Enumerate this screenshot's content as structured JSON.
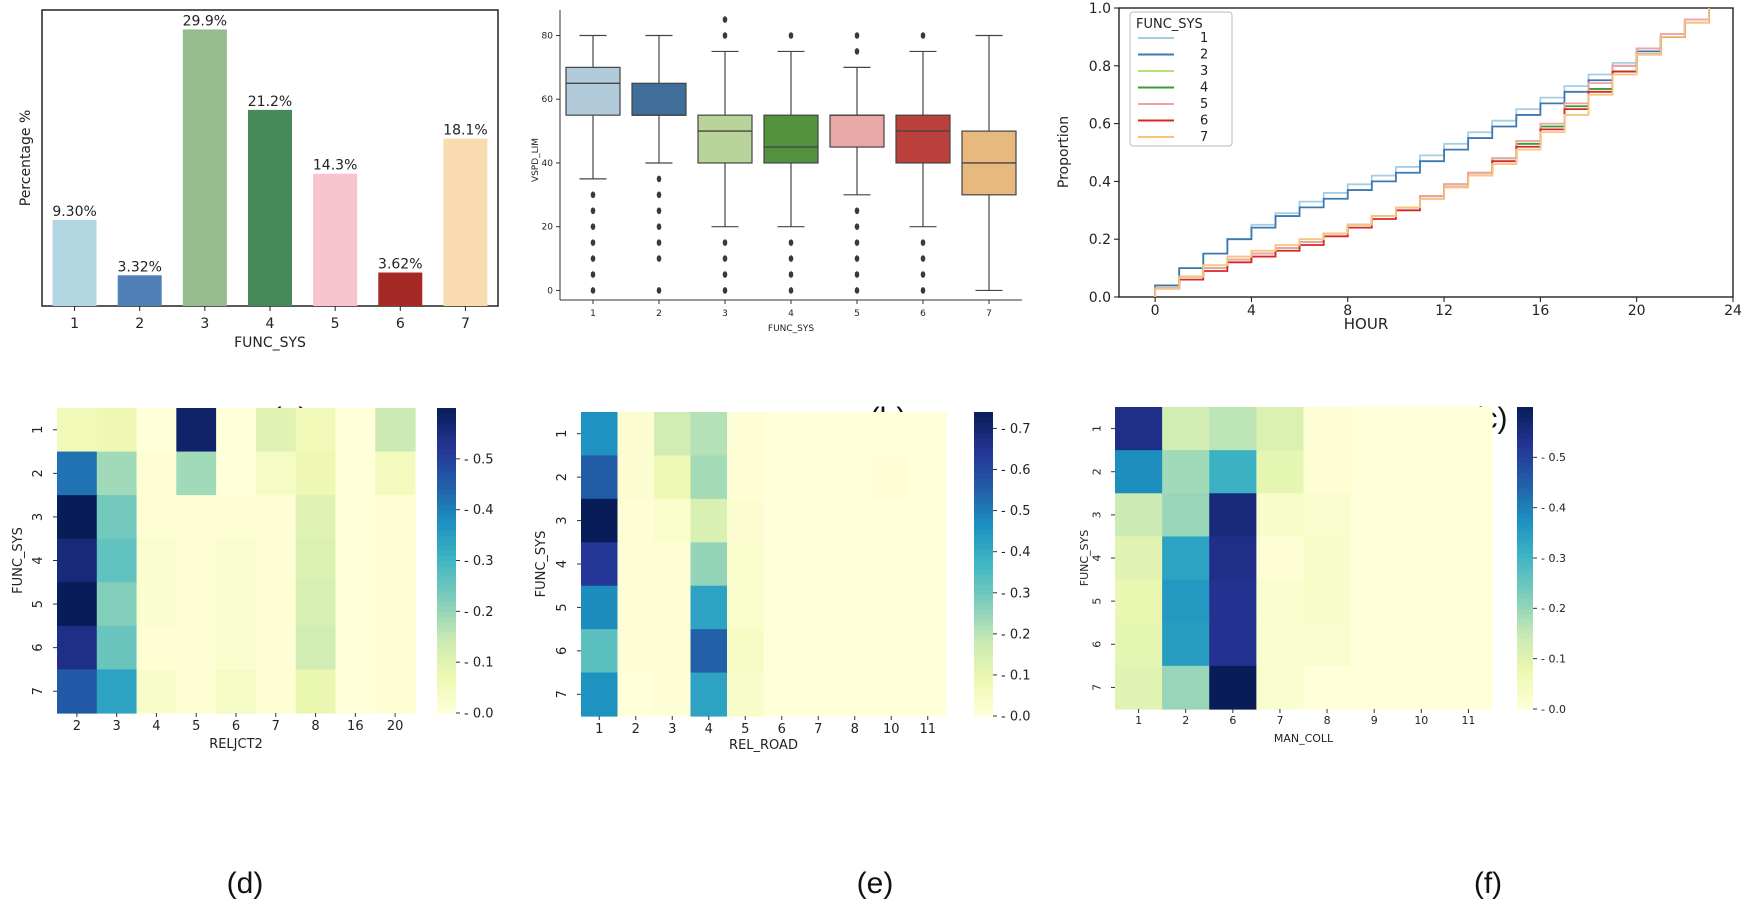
{
  "figure": {
    "captions": [
      "(a)",
      "(b)",
      "(c)",
      "(d)",
      "(e)",
      "(f)"
    ]
  },
  "chart_data": [
    {
      "id": "a",
      "type": "bar",
      "title": "",
      "xlabel": "FUNC_SYS",
      "ylabel": "Percentage %",
      "categories": [
        "1",
        "2",
        "3",
        "4",
        "5",
        "6",
        "7"
      ],
      "values": [
        9.3,
        3.32,
        29.9,
        21.2,
        14.3,
        3.62,
        18.1
      ],
      "labels": [
        "9.30%",
        "3.32%",
        "29.9%",
        "21.2%",
        "14.3%",
        "3.62%",
        "18.1%"
      ],
      "colors": [
        "#b3d6e3",
        "#4f81b7",
        "#96bb8f",
        "#458a57",
        "#f6c3cf",
        "#a52a25",
        "#f8dcb0"
      ],
      "ylim": [
        0,
        32
      ],
      "grid": false
    },
    {
      "id": "b",
      "type": "box",
      "xlabel": "FUNC_SYS",
      "ylabel": "VSPD_LIM",
      "categories": [
        "1",
        "2",
        "3",
        "4",
        "5",
        "6",
        "7"
      ],
      "ylim": [
        -3,
        88
      ],
      "yticks": [
        0,
        20,
        40,
        60,
        80
      ],
      "colors": [
        "#b2cbdb",
        "#3e6e99",
        "#b9d49b",
        "#55923f",
        "#e7a8a6",
        "#bb3f3a",
        "#e8b97e"
      ],
      "boxes": [
        {
          "whislo": 35,
          "q1": 55,
          "med": 65,
          "q3": 70,
          "whishi": 80,
          "fliers": [
            0,
            5,
            10,
            15,
            20,
            25,
            30
          ]
        },
        {
          "whislo": 40,
          "q1": 55,
          "med": 55,
          "q3": 65,
          "whishi": 80,
          "fliers": [
            0,
            10,
            15,
            20,
            25,
            30,
            35
          ]
        },
        {
          "whislo": 20,
          "q1": 40,
          "med": 50,
          "q3": 55,
          "whishi": 75,
          "fliers": [
            0,
            5,
            10,
            15,
            80,
            85
          ]
        },
        {
          "whislo": 20,
          "q1": 40,
          "med": 45,
          "q3": 55,
          "whishi": 75,
          "fliers": [
            0,
            5,
            10,
            15,
            80
          ]
        },
        {
          "whislo": 30,
          "q1": 45,
          "med": 55,
          "q3": 55,
          "whishi": 70,
          "fliers": [
            0,
            5,
            10,
            15,
            20,
            25,
            75,
            80
          ]
        },
        {
          "whislo": 20,
          "q1": 40,
          "med": 50,
          "q3": 55,
          "whishi": 75,
          "fliers": [
            0,
            5,
            10,
            15,
            80
          ]
        },
        {
          "whislo": 0,
          "q1": 30,
          "med": 40,
          "q3": 50,
          "whishi": 80,
          "fliers": []
        }
      ]
    },
    {
      "id": "c",
      "type": "line",
      "subtype": "step-ecdf",
      "xlabel": "HOUR",
      "ylabel": "Proportion",
      "xlim": [
        -1.5,
        24
      ],
      "ylim": [
        0,
        1
      ],
      "xticks": [
        0,
        4,
        8,
        12,
        16,
        20,
        24
      ],
      "yticks": [
        "0.0",
        "0.2",
        "0.4",
        "0.6",
        "0.8",
        "1.0"
      ],
      "legend": {
        "title": "FUNC_SYS",
        "position": "top-left"
      },
      "x": [
        0,
        1,
        2,
        3,
        4,
        5,
        6,
        7,
        8,
        9,
        10,
        11,
        12,
        13,
        14,
        15,
        16,
        17,
        18,
        19,
        20,
        21,
        22,
        23
      ],
      "series": [
        {
          "name": "1",
          "color": "#a6cee3",
          "values": [
            0.04,
            0.1,
            0.15,
            0.2,
            0.25,
            0.29,
            0.33,
            0.36,
            0.39,
            0.42,
            0.45,
            0.49,
            0.53,
            0.57,
            0.61,
            0.65,
            0.69,
            0.73,
            0.77,
            0.81,
            0.86,
            0.91,
            0.96,
            1.0
          ]
        },
        {
          "name": "2",
          "color": "#3c78b4",
          "values": [
            0.04,
            0.1,
            0.15,
            0.2,
            0.24,
            0.28,
            0.31,
            0.34,
            0.37,
            0.4,
            0.43,
            0.47,
            0.51,
            0.55,
            0.59,
            0.63,
            0.67,
            0.71,
            0.75,
            0.8,
            0.85,
            0.9,
            0.95,
            1.0
          ]
        },
        {
          "name": "3",
          "color": "#b8de7a",
          "values": [
            0.03,
            0.07,
            0.1,
            0.13,
            0.15,
            0.17,
            0.19,
            0.22,
            0.25,
            0.28,
            0.31,
            0.35,
            0.39,
            0.43,
            0.48,
            0.53,
            0.59,
            0.66,
            0.72,
            0.78,
            0.84,
            0.9,
            0.95,
            1.0
          ]
        },
        {
          "name": "4",
          "color": "#3a9c3a",
          "values": [
            0.03,
            0.07,
            0.1,
            0.13,
            0.15,
            0.17,
            0.19,
            0.22,
            0.25,
            0.28,
            0.31,
            0.35,
            0.39,
            0.43,
            0.48,
            0.53,
            0.59,
            0.66,
            0.72,
            0.78,
            0.84,
            0.9,
            0.95,
            1.0
          ]
        },
        {
          "name": "5",
          "color": "#f4a1a1",
          "values": [
            0.03,
            0.07,
            0.1,
            0.13,
            0.15,
            0.17,
            0.19,
            0.22,
            0.25,
            0.28,
            0.31,
            0.35,
            0.39,
            0.43,
            0.48,
            0.54,
            0.6,
            0.67,
            0.74,
            0.8,
            0.86,
            0.91,
            0.96,
            1.0
          ]
        },
        {
          "name": "6",
          "color": "#d62728",
          "values": [
            0.03,
            0.06,
            0.09,
            0.12,
            0.14,
            0.16,
            0.18,
            0.21,
            0.24,
            0.27,
            0.3,
            0.34,
            0.38,
            0.42,
            0.47,
            0.52,
            0.58,
            0.65,
            0.71,
            0.78,
            0.84,
            0.9,
            0.95,
            1.0
          ]
        },
        {
          "name": "7",
          "color": "#f9c47d",
          "values": [
            0.03,
            0.07,
            0.11,
            0.14,
            0.16,
            0.18,
            0.2,
            0.22,
            0.25,
            0.28,
            0.31,
            0.34,
            0.38,
            0.42,
            0.46,
            0.51,
            0.57,
            0.63,
            0.7,
            0.77,
            0.84,
            0.9,
            0.95,
            1.0
          ]
        }
      ]
    },
    {
      "id": "d",
      "type": "heatmap",
      "xlabel": "RELJCT2",
      "ylabel": "FUNC_SYS",
      "xcategories": [
        "2",
        "3",
        "4",
        "5",
        "6",
        "7",
        "8",
        "16",
        "20"
      ],
      "ycategories": [
        "1",
        "2",
        "3",
        "4",
        "5",
        "6",
        "7"
      ],
      "colorbar": {
        "min": 0,
        "max": 0.6,
        "ticks": [
          "0.0",
          "0.1",
          "0.2",
          "0.3",
          "0.4",
          "0.5"
        ]
      },
      "values": [
        [
          0.06,
          0.07,
          0.0,
          0.58,
          0.0,
          0.1,
          0.06,
          0.0,
          0.14
        ],
        [
          0.42,
          0.19,
          0.01,
          0.19,
          0.0,
          0.04,
          0.07,
          0.0,
          0.05
        ],
        [
          0.6,
          0.24,
          0.01,
          0.01,
          0.01,
          0.01,
          0.1,
          0.0,
          0.01
        ],
        [
          0.56,
          0.26,
          0.02,
          0.01,
          0.02,
          0.01,
          0.11,
          0.0,
          0.01
        ],
        [
          0.6,
          0.22,
          0.02,
          0.01,
          0.02,
          0.01,
          0.12,
          0.0,
          0.01
        ],
        [
          0.54,
          0.25,
          0.01,
          0.01,
          0.02,
          0.01,
          0.13,
          0.0,
          0.01
        ],
        [
          0.46,
          0.34,
          0.03,
          0.01,
          0.04,
          0.01,
          0.08,
          0.0,
          0.01
        ]
      ]
    },
    {
      "id": "e",
      "type": "heatmap",
      "xlabel": "REL_ROAD",
      "ylabel": "FUNC_SYS",
      "xcategories": [
        "1",
        "2",
        "3",
        "4",
        "5",
        "6",
        "7",
        "8",
        "10",
        "11"
      ],
      "ycategories": [
        "1",
        "2",
        "3",
        "4",
        "5",
        "6",
        "7"
      ],
      "colorbar": {
        "min": 0,
        "max": 0.74,
        "ticks": [
          "0.0",
          "0.1",
          "0.2",
          "0.3",
          "0.4",
          "0.5",
          "0.6",
          "0.7"
        ]
      },
      "values": [
        [
          0.46,
          0.02,
          0.16,
          0.21,
          0.01,
          0.0,
          0.0,
          0.0,
          0.0,
          0.0
        ],
        [
          0.56,
          0.02,
          0.08,
          0.23,
          0.01,
          0.0,
          0.0,
          0.0,
          0.01,
          0.0
        ],
        [
          0.74,
          0.01,
          0.03,
          0.14,
          0.02,
          0.0,
          0.0,
          0.0,
          0.0,
          0.0
        ],
        [
          0.64,
          0.01,
          0.01,
          0.25,
          0.03,
          0.0,
          0.0,
          0.0,
          0.0,
          0.0
        ],
        [
          0.47,
          0.01,
          0.01,
          0.42,
          0.03,
          0.0,
          0.0,
          0.0,
          0.0,
          0.0
        ],
        [
          0.33,
          0.01,
          0.01,
          0.55,
          0.05,
          0.0,
          0.0,
          0.0,
          0.0,
          0.0
        ],
        [
          0.46,
          0.0,
          0.01,
          0.42,
          0.04,
          0.0,
          0.0,
          0.0,
          0.0,
          0.0
        ]
      ]
    },
    {
      "id": "f",
      "type": "heatmap",
      "xlabel": "MAN_COLL",
      "ylabel": "FUNC_SYS",
      "xcategories": [
        "1",
        "2",
        "6",
        "7",
        "8",
        "9",
        "10",
        "11"
      ],
      "ycategories": [
        "1",
        "2",
        "3",
        "4",
        "5",
        "6",
        "7"
      ],
      "colorbar": {
        "min": 0,
        "max": 0.6,
        "ticks": [
          "0.0",
          "0.1",
          "0.2",
          "0.3",
          "0.4",
          "0.5"
        ]
      },
      "values": [
        [
          0.54,
          0.13,
          0.16,
          0.11,
          0.01,
          0.0,
          0.0,
          0.0
        ],
        [
          0.38,
          0.19,
          0.31,
          0.09,
          0.01,
          0.0,
          0.0,
          0.0
        ],
        [
          0.14,
          0.2,
          0.56,
          0.03,
          0.02,
          0.0,
          0.0,
          0.0
        ],
        [
          0.1,
          0.34,
          0.54,
          0.01,
          0.03,
          0.0,
          0.0,
          0.0
        ],
        [
          0.08,
          0.36,
          0.53,
          0.02,
          0.03,
          0.0,
          0.0,
          0.0
        ],
        [
          0.09,
          0.35,
          0.53,
          0.02,
          0.02,
          0.0,
          0.0,
          0.0
        ],
        [
          0.1,
          0.2,
          0.6,
          0.02,
          0.0,
          0.0,
          0.0,
          0.0
        ]
      ]
    }
  ]
}
